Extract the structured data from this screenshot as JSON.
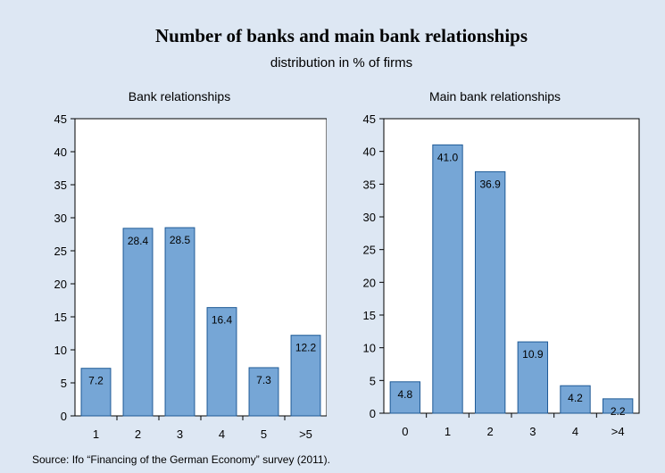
{
  "title": "Number of banks and main bank relationships",
  "subtitle": "distribution in % of firms",
  "source": "Source: Ifo “Financing of the German Economy” survey (2011).",
  "colors": {
    "background": "#dde7f3",
    "bar_fill": "#76a6d6",
    "bar_stroke": "#1e5a96",
    "plot_bg": "#ffffff"
  },
  "chart_data": [
    {
      "type": "bar",
      "title": "Bank relationships",
      "categories": [
        "1",
        "2",
        "3",
        "4",
        "5",
        ">5"
      ],
      "values": [
        7.2,
        28.4,
        28.5,
        16.4,
        7.3,
        12.2
      ],
      "labels": [
        "7.2",
        "28.4",
        "28.5",
        "16.4",
        "7.3",
        "12.2"
      ],
      "ylim": [
        0,
        45
      ],
      "yticks": [
        0,
        5,
        10,
        15,
        20,
        25,
        30,
        35,
        40,
        45
      ],
      "grid": false,
      "xlabel": "",
      "ylabel": ""
    },
    {
      "type": "bar",
      "title": "Main bank relationships",
      "categories": [
        "0",
        "1",
        "2",
        "3",
        "4",
        ">4"
      ],
      "values": [
        4.8,
        41.0,
        36.9,
        10.9,
        4.2,
        2.2
      ],
      "labels": [
        "4.8",
        "41.0",
        "36.9",
        "10.9",
        "4.2",
        "2.2"
      ],
      "ylim": [
        0,
        45
      ],
      "yticks": [
        0,
        5,
        10,
        15,
        20,
        25,
        30,
        35,
        40,
        45
      ],
      "grid": false,
      "xlabel": "",
      "ylabel": ""
    }
  ]
}
